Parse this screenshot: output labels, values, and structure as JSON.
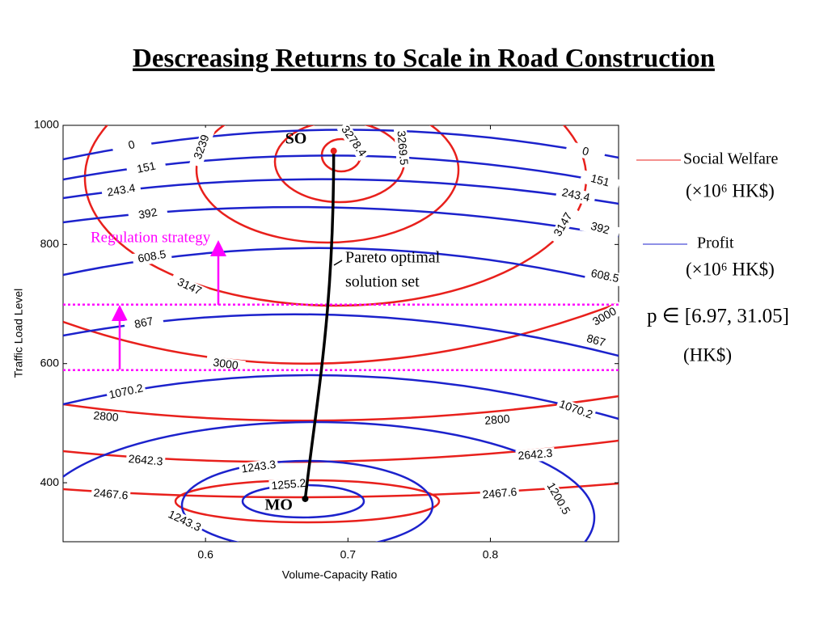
{
  "chart_data": {
    "type": "contour",
    "title": "Descreasing Returns to Scale in Road Construction",
    "xlabel": "Volume-Capacity Ratio",
    "ylabel": "Traffic Load Level",
    "xlim": [
      0.5,
      0.89
    ],
    "ylim": [
      301,
      1000
    ],
    "xticks": [
      0.6,
      0.7,
      0.8
    ],
    "yticks": [
      400,
      600,
      800,
      1000
    ],
    "series": [
      {
        "name": "Social Welfare",
        "color": "#e8201c",
        "levels": [
          2467.6,
          2642.3,
          2800,
          3000,
          3147,
          3239,
          3269.5,
          3278.4
        ]
      },
      {
        "name": "Profit",
        "color": "#1c22cc",
        "levels": [
          0,
          151,
          243.4,
          392,
          608.5,
          867,
          1070.2,
          1200.5,
          1243.3,
          1255.2
        ]
      }
    ],
    "unit_label": "(×10⁶ HK$)",
    "price_label": "p ∈ [6.97, 31.05]",
    "price_unit": "(HK$)",
    "points": [
      {
        "name": "SO",
        "x": 0.69,
        "y": 957
      },
      {
        "name": "MO",
        "x": 0.67,
        "y": 373
      }
    ],
    "pareto_label": [
      "Pareto optimal",
      "solution set"
    ],
    "regulation_label": "Regulation strategy",
    "regulation_lines": [
      699,
      589
    ]
  }
}
